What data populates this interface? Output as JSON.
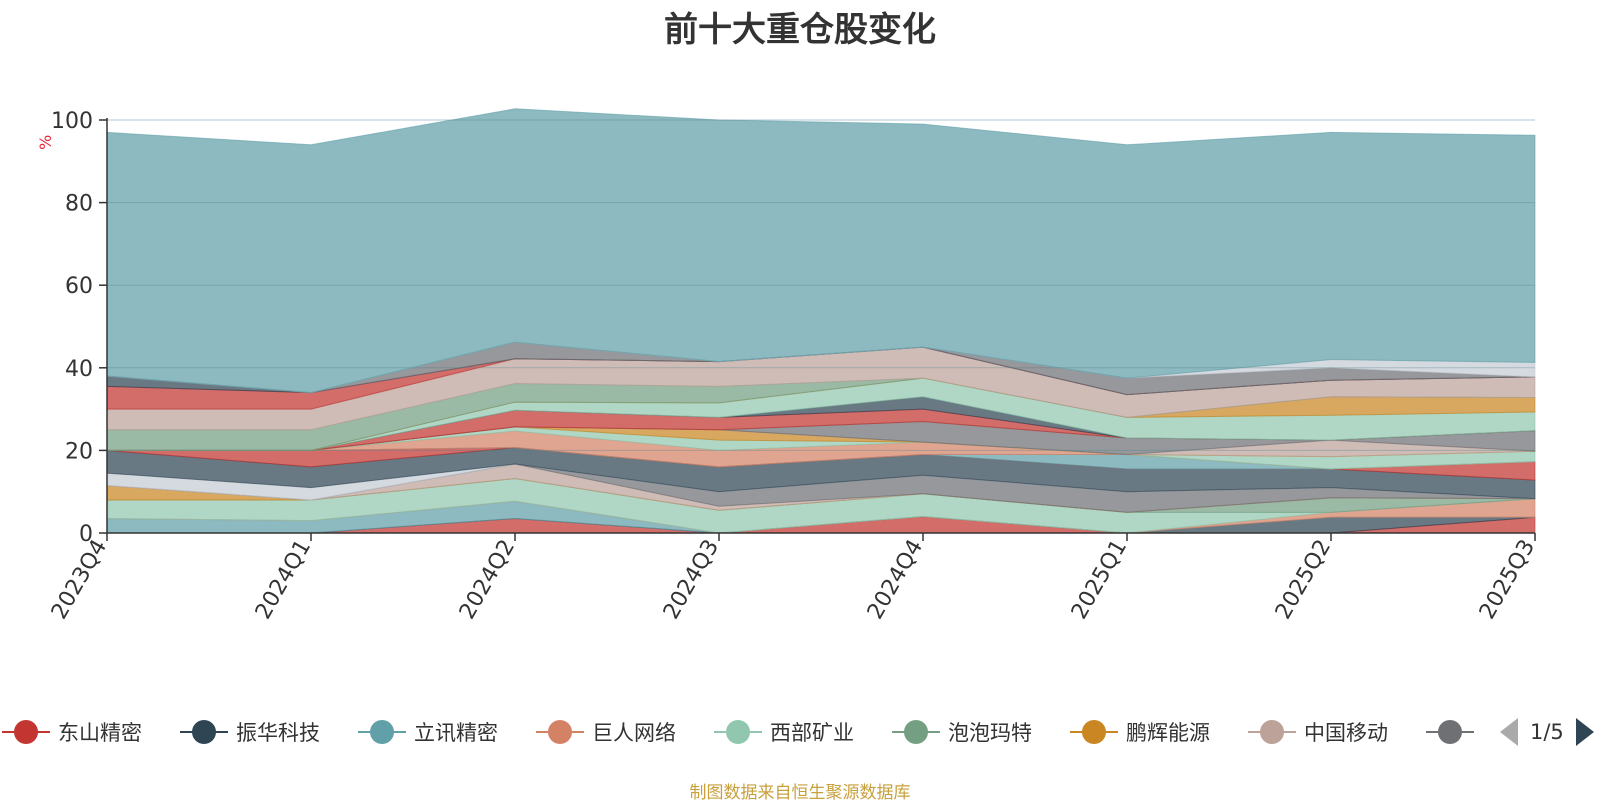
{
  "chart_data": {
    "type": "area",
    "title": "前十大重仓股变化",
    "ylabel": "%",
    "ylim": [
      0,
      100
    ],
    "yticks": [
      0,
      20,
      40,
      60,
      80,
      100
    ],
    "categories": [
      "2023Q4",
      "2024Q1",
      "2024Q2",
      "2024Q3",
      "2024Q4",
      "2025Q1",
      "2025Q2",
      "2025Q3"
    ],
    "grid": true,
    "stacked": true,
    "series": [
      {
        "name": "东山精密",
        "color": "#c23531",
        "values": [
          0,
          0,
          3.5,
          0,
          4,
          0,
          0,
          3.8
        ]
      },
      {
        "name": "振华科技",
        "color": "#2f4554",
        "values": [
          0,
          0,
          0,
          0,
          0,
          0,
          3.8,
          0
        ]
      },
      {
        "name": "立讯精密",
        "color": "#61a0a8",
        "values": [
          3.5,
          3,
          4.2,
          0,
          0,
          0,
          0,
          0
        ]
      },
      {
        "name": "巨人网络",
        "color": "#d48265",
        "values": [
          0,
          0,
          0,
          0,
          0,
          0,
          1.2,
          4.5
        ]
      },
      {
        "name": "西部矿业",
        "color": "#91c7ae",
        "values": [
          4.5,
          5,
          5.5,
          5.5,
          5.5,
          5,
          0,
          0
        ]
      },
      {
        "name": "泡泡玛特",
        "color": "#749f83",
        "values": [
          0,
          0,
          0,
          0,
          0,
          0,
          3.5,
          0
        ]
      },
      {
        "name": "鹏辉能源",
        "color": "#ca8622",
        "values": [
          3.5,
          0,
          0,
          0,
          0,
          0,
          0,
          0
        ]
      },
      {
        "name": "中国移动",
        "color": "#bda29a",
        "values": [
          0,
          0,
          3.5,
          1,
          0,
          0,
          0,
          0
        ]
      },
      {
        "name": "",
        "color": "#6e7074",
        "values": [
          0,
          0,
          0,
          3.5,
          4.5,
          5,
          2.5,
          0
        ]
      },
      {
        "name": "",
        "color": "#c4ccd3",
        "values": [
          3,
          3,
          0,
          0,
          0,
          0,
          0,
          0
        ]
      },
      {
        "name": "",
        "color": "#2f4554",
        "values": [
          5.5,
          5,
          4,
          6,
          5,
          5.5,
          4.5,
          4.5
        ]
      },
      {
        "name": "",
        "color": "#c23531",
        "values": [
          0,
          4,
          0,
          0,
          0,
          0,
          0,
          4.5
        ]
      },
      {
        "name": "",
        "color": "#61a0a8",
        "values": [
          0,
          0,
          0,
          0,
          0,
          3.5,
          0,
          0
        ]
      },
      {
        "name": "",
        "color": "#d48265",
        "values": [
          0,
          0,
          4,
          4,
          3,
          0,
          0,
          0
        ]
      },
      {
        "name": "",
        "color": "#91c7ae",
        "values": [
          0,
          0,
          1,
          2.5,
          0,
          0,
          3,
          2.5
        ]
      },
      {
        "name": "",
        "color": "#ca8622",
        "values": [
          0,
          0,
          0,
          2.5,
          0,
          0,
          0,
          0
        ]
      },
      {
        "name": "",
        "color": "#bda29a",
        "values": [
          0,
          0,
          0,
          0,
          0,
          0,
          4,
          0
        ]
      },
      {
        "name": "",
        "color": "#6e7074",
        "values": [
          0,
          0,
          0,
          0,
          5,
          4,
          0,
          5
        ]
      },
      {
        "name": "",
        "color": "#c23531",
        "values": [
          0,
          0,
          4,
          3,
          3,
          0,
          0,
          0
        ]
      },
      {
        "name": "",
        "color": "#2f4554",
        "values": [
          0,
          0,
          0,
          0,
          3,
          0,
          0,
          0
        ]
      },
      {
        "name": "",
        "color": "#91c7ae",
        "values": [
          0,
          0,
          2,
          3.5,
          4.5,
          5,
          6,
          4.5
        ]
      },
      {
        "name": "",
        "color": "#ca8622",
        "values": [
          0,
          0,
          0,
          0,
          0,
          0,
          4.5,
          3.5
        ]
      },
      {
        "name": "",
        "color": "#749f83",
        "values": [
          5,
          5,
          4.5,
          4,
          0,
          0,
          0,
          0
        ]
      },
      {
        "name": "",
        "color": "#bda29a",
        "values": [
          5,
          5,
          6,
          6,
          7.5,
          5.5,
          4,
          5
        ]
      },
      {
        "name": "",
        "color": "#c23531",
        "values": [
          5.5,
          4,
          0,
          0,
          0,
          0,
          0,
          0
        ]
      },
      {
        "name": "",
        "color": "#2f4554",
        "values": [
          2.5,
          0,
          0,
          0,
          0,
          0,
          0,
          0
        ]
      },
      {
        "name": "",
        "color": "#6e7074",
        "values": [
          0,
          0,
          4,
          0,
          0,
          4,
          3,
          0
        ]
      },
      {
        "name": "",
        "color": "#c4ccd3",
        "values": [
          0,
          0,
          0,
          0,
          0,
          0,
          2,
          3.5
        ]
      },
      {
        "name": "",
        "color": "#61a0a8",
        "values": [
          59,
          60,
          56.5,
          58.5,
          54,
          56.5,
          55,
          55
        ]
      }
    ]
  },
  "legend": {
    "items": [
      {
        "label": "东山精密",
        "color": "#c23531",
        "icon": "circle-icon"
      },
      {
        "label": "振华科技",
        "color": "#2f4554",
        "icon": "circle-icon"
      },
      {
        "label": "立讯精密",
        "color": "#61a0a8",
        "icon": "circle-icon"
      },
      {
        "label": "巨人网络",
        "color": "#d48265",
        "icon": "circle-icon"
      },
      {
        "label": "西部矿业",
        "color": "#91c7ae",
        "icon": "circle-icon"
      },
      {
        "label": "泡泡玛特",
        "color": "#749f83",
        "icon": "circle-icon"
      },
      {
        "label": "鹏辉能源",
        "color": "#ca8622",
        "icon": "circle-icon"
      },
      {
        "label": "中国移动",
        "color": "#bda29a",
        "icon": "circle-icon"
      },
      {
        "label": "",
        "color": "#6e7074",
        "icon": "circle-icon"
      }
    ],
    "pager": {
      "text": "1/5",
      "prev_icon": "triangle-left-icon",
      "next_icon": "triangle-right-icon"
    }
  },
  "source": "制图数据来自恒生聚源数据库"
}
